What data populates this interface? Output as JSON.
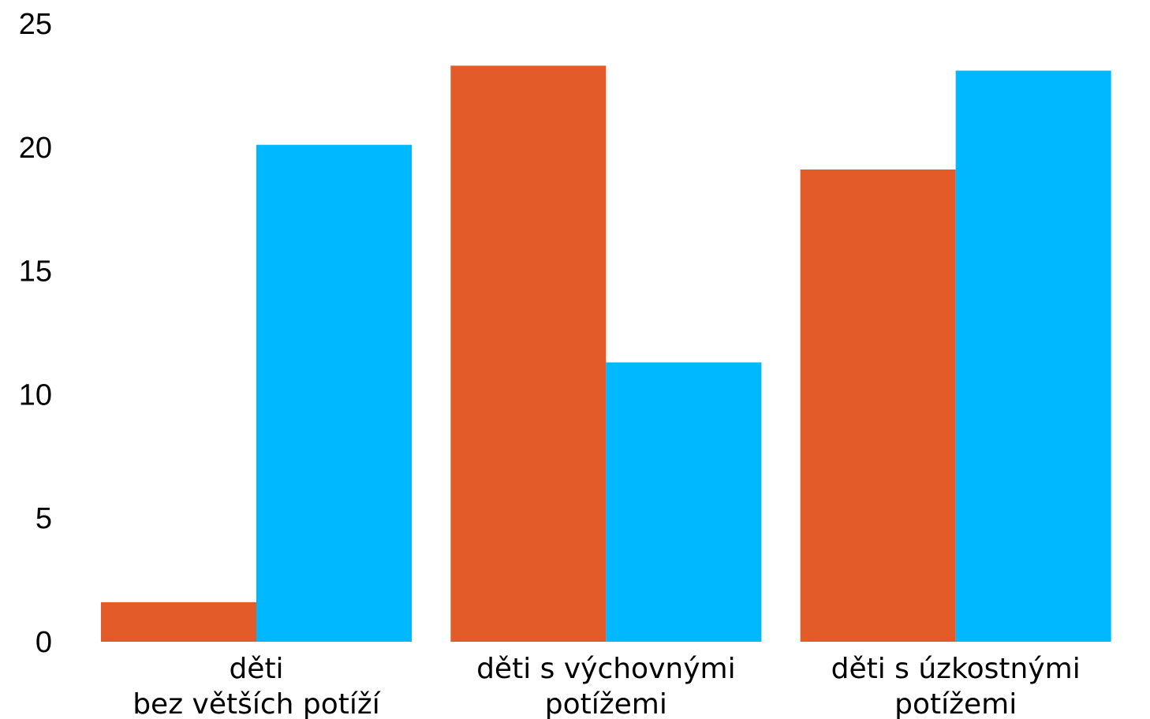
{
  "chart_data": {
    "type": "bar",
    "title": "",
    "xlabel": "",
    "ylabel": "",
    "ylim": [
      0,
      25
    ],
    "yticks": [
      0,
      5,
      10,
      15,
      20,
      25
    ],
    "grid": false,
    "legend": "none",
    "categories": [
      [
        "děti",
        "bez větších potíží"
      ],
      [
        "děti s výchovnými",
        "potížemi"
      ],
      [
        "děti s úzkostnými",
        "potížemi"
      ]
    ],
    "series": [
      {
        "color": "#e35b28",
        "values": [
          1.6,
          23.3,
          19.1
        ]
      },
      {
        "color": "#00b8ff",
        "values": [
          20.1,
          11.3,
          23.1
        ]
      }
    ]
  }
}
